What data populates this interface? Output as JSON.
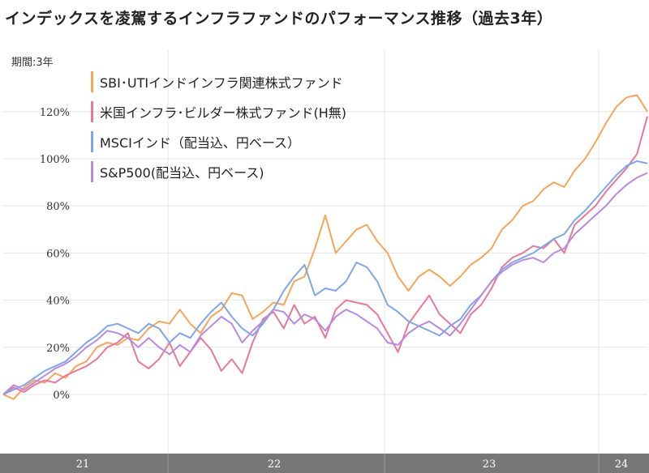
{
  "title": "インデックスを凌駕するインフラファンドのパフォーマンス推移（過去3年）",
  "period_label": "期間:3年",
  "chart_data": {
    "type": "line",
    "ylim": [
      -0.05,
      1.32
    ],
    "y_ticks": [
      0,
      0.2,
      0.4,
      0.6,
      0.8,
      1.0,
      1.2
    ],
    "y_tick_labels": [
      "0%",
      "20%",
      "40%",
      "60%",
      "80%",
      "100%",
      "120%"
    ],
    "x_tick_labels": [
      "21",
      "22",
      "23",
      "24"
    ],
    "grid": true,
    "legend_position": "top-left",
    "series": [
      {
        "name": "SBI･UTIインドインフラ関連株式ファンド",
        "color": "#f5a55a",
        "values": [
          0,
          -0.02,
          0.03,
          0.06,
          0.05,
          0.09,
          0.07,
          0.12,
          0.14,
          0.2,
          0.22,
          0.21,
          0.24,
          0.23,
          0.28,
          0.31,
          0.3,
          0.36,
          0.3,
          0.26,
          0.33,
          0.36,
          0.43,
          0.42,
          0.32,
          0.35,
          0.39,
          0.38,
          0.48,
          0.5,
          0.62,
          0.76,
          0.6,
          0.65,
          0.7,
          0.72,
          0.65,
          0.6,
          0.5,
          0.44,
          0.5,
          0.53,
          0.5,
          0.46,
          0.5,
          0.55,
          0.58,
          0.62,
          0.7,
          0.74,
          0.8,
          0.82,
          0.87,
          0.9,
          0.88,
          0.95,
          1.0,
          1.07,
          1.15,
          1.22,
          1.26,
          1.27,
          1.2
        ]
      },
      {
        "name": "米国インフラ･ビルダー株式ファンド(H無)",
        "color": "#e8789a",
        "values": [
          0,
          0.03,
          0.01,
          0.04,
          0.06,
          0.05,
          0.08,
          0.1,
          0.12,
          0.15,
          0.2,
          0.22,
          0.26,
          0.14,
          0.11,
          0.15,
          0.22,
          0.12,
          0.18,
          0.24,
          0.19,
          0.1,
          0.15,
          0.09,
          0.22,
          0.32,
          0.35,
          0.28,
          0.38,
          0.3,
          0.33,
          0.24,
          0.36,
          0.4,
          0.39,
          0.38,
          0.34,
          0.26,
          0.18,
          0.3,
          0.36,
          0.42,
          0.34,
          0.3,
          0.26,
          0.34,
          0.38,
          0.45,
          0.54,
          0.58,
          0.6,
          0.63,
          0.62,
          0.66,
          0.6,
          0.72,
          0.76,
          0.8,
          0.86,
          0.91,
          0.96,
          1.02,
          1.18
        ]
      },
      {
        "name": "MSCIインド（配当込、円ベース）",
        "color": "#7fa6e8",
        "values": [
          0,
          0.02,
          0.04,
          0.07,
          0.1,
          0.12,
          0.14,
          0.18,
          0.22,
          0.25,
          0.29,
          0.3,
          0.28,
          0.26,
          0.3,
          0.28,
          0.22,
          0.26,
          0.24,
          0.3,
          0.35,
          0.39,
          0.33,
          0.28,
          0.25,
          0.3,
          0.36,
          0.44,
          0.5,
          0.55,
          0.42,
          0.45,
          0.44,
          0.48,
          0.56,
          0.54,
          0.48,
          0.38,
          0.35,
          0.31,
          0.29,
          0.27,
          0.25,
          0.29,
          0.32,
          0.38,
          0.42,
          0.48,
          0.53,
          0.56,
          0.58,
          0.6,
          0.63,
          0.66,
          0.68,
          0.74,
          0.78,
          0.83,
          0.88,
          0.93,
          0.97,
          0.99,
          0.98
        ]
      },
      {
        "name": "S&P500(配当込、円ベース)",
        "color": "#b88ae0",
        "values": [
          0,
          0.04,
          0.02,
          0.05,
          0.08,
          0.11,
          0.13,
          0.16,
          0.2,
          0.23,
          0.27,
          0.26,
          0.24,
          0.2,
          0.24,
          0.2,
          0.17,
          0.21,
          0.18,
          0.25,
          0.29,
          0.33,
          0.3,
          0.22,
          0.27,
          0.31,
          0.36,
          0.35,
          0.3,
          0.34,
          0.32,
          0.27,
          0.33,
          0.36,
          0.34,
          0.31,
          0.28,
          0.22,
          0.21,
          0.26,
          0.29,
          0.31,
          0.28,
          0.25,
          0.3,
          0.36,
          0.42,
          0.48,
          0.52,
          0.55,
          0.57,
          0.58,
          0.56,
          0.6,
          0.62,
          0.68,
          0.72,
          0.76,
          0.8,
          0.85,
          0.89,
          0.92,
          0.94
        ]
      }
    ]
  }
}
